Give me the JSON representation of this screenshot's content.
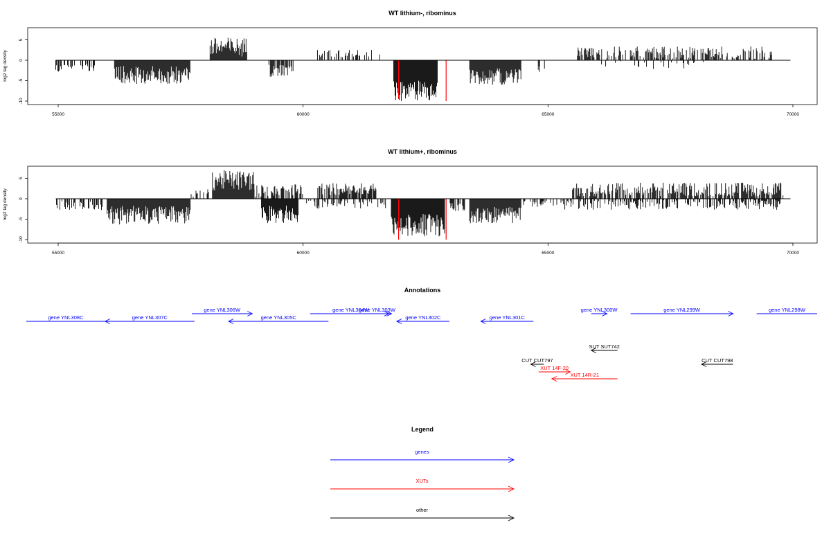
{
  "chart_data": [
    {
      "type": "bar",
      "title": "WT lithium-, ribominus",
      "ylabel": "log2 tag density",
      "xlim": [
        54950,
        70000
      ],
      "ylim": [
        -10.5,
        8
      ],
      "x_ticks": [
        55000,
        60000,
        65000,
        70000
      ],
      "x_tick_labels": [
        "55000",
        "60000",
        "65000",
        "70000"
      ],
      "y_ticks": [
        -10,
        -5,
        0,
        5
      ],
      "y_tick_labels": [
        "-10",
        "-5",
        "0",
        "5"
      ],
      "baseline": {
        "x": [
          54950,
          69950
        ],
        "y": 0
      },
      "segments": [
        {
          "x": [
            54950,
            55750
          ],
          "sign": -1,
          "mean": 1.8,
          "amp": 1.0,
          "density": 0.45
        },
        {
          "x": [
            56150,
            57700
          ],
          "sign": -1,
          "mean": 3.6,
          "amp": 2.2,
          "density": 1.0
        },
        {
          "x": [
            58100,
            58850
          ],
          "sign": 1,
          "mean": 3.2,
          "amp": 2.4,
          "density": 1.0
        },
        {
          "x": [
            59300,
            59800
          ],
          "sign": -1,
          "mean": 2.6,
          "amp": 1.6,
          "density": 0.8
        },
        {
          "x": [
            60250,
            61600
          ],
          "sign": 1,
          "mean": 1.6,
          "amp": 1.0,
          "density": 0.35
        },
        {
          "x": [
            61850,
            62750
          ],
          "sign": -1,
          "mean": 7.5,
          "amp": 2.5,
          "density": 1.0
        },
        {
          "x": [
            63400,
            64450
          ],
          "sign": -1,
          "mean": 4.0,
          "amp": 2.0,
          "density": 1.0
        },
        {
          "x": [
            64800,
            64950
          ],
          "sign": -1,
          "mean": 2.0,
          "amp": 1.0,
          "density": 0.4
        },
        {
          "x": [
            65600,
            66100
          ],
          "sign": 1,
          "mean": 2.0,
          "amp": 1.3,
          "density": 0.8
        },
        {
          "x": [
            66200,
            69600
          ],
          "sign": 1,
          "mean": 1.8,
          "amp": 1.6,
          "density": 0.5
        },
        {
          "x": [
            66050,
            68200
          ],
          "sign": -1,
          "mean": 1.2,
          "amp": 1.0,
          "density": 0.12
        }
      ],
      "highlights": [
        {
          "x": 61950,
          "y": -9.5,
          "color": "#ff0000"
        },
        {
          "x": 62920,
          "y": -10.0,
          "color": "#ff0000"
        }
      ]
    },
    {
      "type": "bar",
      "title": "WT lithium+, ribominus",
      "ylabel": "log2 tag density",
      "xlim": [
        54950,
        70000
      ],
      "ylim": [
        -10.5,
        8
      ],
      "x_ticks": [
        55000,
        60000,
        65000,
        70000
      ],
      "x_tick_labels": [
        "55000",
        "60000",
        "65000",
        "70000"
      ],
      "y_ticks": [
        -10,
        -5,
        0,
        5
      ],
      "y_tick_labels": [
        "-10",
        "-5",
        "0",
        "5"
      ],
      "baseline": {
        "x": [
          54950,
          69950
        ],
        "y": 0
      },
      "segments": [
        {
          "x": [
            54950,
            55900
          ],
          "sign": -1,
          "mean": 1.6,
          "amp": 1.2,
          "density": 0.45
        },
        {
          "x": [
            56000,
            57700
          ],
          "sign": -1,
          "mean": 4.0,
          "amp": 2.3,
          "density": 1.0
        },
        {
          "x": [
            57700,
            58150
          ],
          "sign": 1,
          "mean": 1.5,
          "amp": 1.0,
          "density": 0.4
        },
        {
          "x": [
            58150,
            59000
          ],
          "sign": 1,
          "mean": 4.5,
          "amp": 2.5,
          "density": 1.0
        },
        {
          "x": [
            59000,
            60000
          ],
          "sign": 1,
          "mean": 2.0,
          "amp": 1.5,
          "density": 0.6
        },
        {
          "x": [
            59150,
            59900
          ],
          "sign": -1,
          "mean": 3.8,
          "amp": 2.2,
          "density": 1.0
        },
        {
          "x": [
            60300,
            61500
          ],
          "sign": 1,
          "mean": 2.3,
          "amp": 1.5,
          "density": 0.8
        },
        {
          "x": [
            60000,
            61700
          ],
          "sign": -1,
          "mean": 1.4,
          "amp": 1.0,
          "density": 0.35
        },
        {
          "x": [
            61800,
            62900
          ],
          "sign": -1,
          "mean": 6.5,
          "amp": 2.8,
          "density": 1.0
        },
        {
          "x": [
            63000,
            63300
          ],
          "sign": -1,
          "mean": 2.0,
          "amp": 1.0,
          "density": 0.6
        },
        {
          "x": [
            63400,
            64450
          ],
          "sign": -1,
          "mean": 4.0,
          "amp": 2.0,
          "density": 1.0
        },
        {
          "x": [
            64500,
            65500
          ],
          "sign": -1,
          "mean": 1.2,
          "amp": 0.8,
          "density": 0.3
        },
        {
          "x": [
            65500,
            69800
          ],
          "sign": 1,
          "mean": 2.3,
          "amp": 1.7,
          "density": 0.75
        },
        {
          "x": [
            65300,
            69800
          ],
          "sign": -1,
          "mean": 1.5,
          "amp": 1.2,
          "density": 0.45
        }
      ],
      "highlights": [
        {
          "x": 61950,
          "y": -10.0,
          "color": "#ff0000"
        },
        {
          "x": 62920,
          "y": -10.0,
          "color": "#ff0000"
        }
      ]
    }
  ],
  "annotations": {
    "title": "Annotations",
    "features": [
      {
        "label": "gene YNL308C",
        "start": 54950,
        "end": 56450,
        "dir": "none",
        "color": "#0000ff",
        "row": 2
      },
      {
        "label": "gene YNL307C",
        "start": 56450,
        "end": 58150,
        "dir": "left",
        "color": "#0000ff",
        "row": 2
      },
      {
        "label": "gene YNL306W",
        "start": 58100,
        "end": 59250,
        "dir": "right",
        "color": "#0000ff",
        "row": 1
      },
      {
        "label": "gene YNL305C",
        "start": 58800,
        "end": 60700,
        "dir": "left",
        "color": "#0000ff",
        "row": 2
      },
      {
        "label": "gene YNL304W",
        "start": 60350,
        "end": 61900,
        "dir": "right",
        "color": "#0000ff",
        "row": 1
      },
      {
        "label": "gene YNL303W",
        "start": 61400,
        "end": 61850,
        "dir": "right",
        "color": "#0000ff",
        "row": 1
      },
      {
        "label": "gene YNL302C",
        "start": 62000,
        "end": 63000,
        "dir": "left",
        "color": "#0000ff",
        "row": 2
      },
      {
        "label": "gene YNL301C",
        "start": 63600,
        "end": 64600,
        "dir": "left",
        "color": "#0000ff",
        "row": 2
      },
      {
        "label": "gene YNL300W",
        "start": 65700,
        "end": 66000,
        "dir": "right",
        "color": "#0000ff",
        "row": 1
      },
      {
        "label": "gene YNL299W",
        "start": 66450,
        "end": 68400,
        "dir": "right",
        "color": "#0000ff",
        "row": 1
      },
      {
        "label": "gene YNL298W",
        "start": 68850,
        "end": 70000,
        "dir": "none",
        "color": "#0000ff",
        "row": 1
      },
      {
        "label": "SUT SUT742",
        "start": 65700,
        "end": 66200,
        "dir": "left",
        "color": "#000000",
        "row": 3
      },
      {
        "label": "CUT CUT797",
        "start": 64550,
        "end": 64800,
        "dir": "left",
        "color": "#000000",
        "row": 4
      },
      {
        "label": "CUT CUT798",
        "start": 67800,
        "end": 68400,
        "dir": "left",
        "color": "#000000",
        "row": 4
      },
      {
        "label": "XUT 14F-20",
        "start": 64700,
        "end": 65300,
        "dir": "right",
        "color": "#ff0000",
        "row": 5
      },
      {
        "label": "XUT 14R-21",
        "start": 64950,
        "end": 66200,
        "dir": "left",
        "color": "#ff0000",
        "row": 6
      }
    ]
  },
  "legend": {
    "title": "Legend",
    "items": [
      {
        "label": "genes",
        "color": "#0000ff"
      },
      {
        "label": "XUTs",
        "color": "#ff0000"
      },
      {
        "label": "other",
        "color": "#000000"
      }
    ]
  }
}
